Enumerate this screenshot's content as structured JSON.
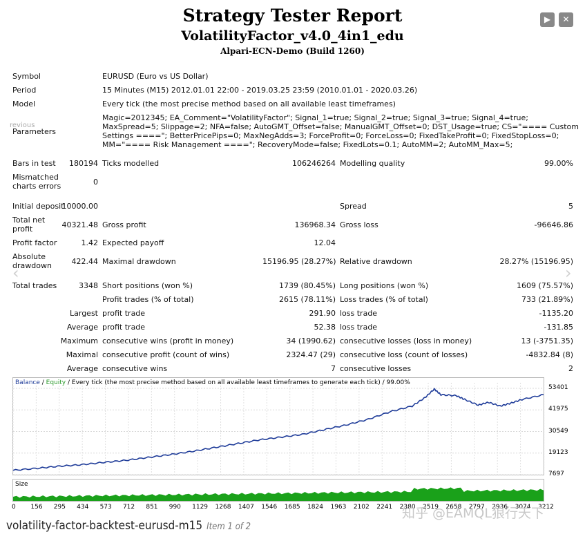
{
  "header": {
    "title": "Strategy Tester Report",
    "subtitle": "VolatilityFactor_v4.0_4in1_edu",
    "build": "Alpari-ECN-Demo (Build 1260)"
  },
  "controls": {
    "play_glyph": "▶",
    "close_glyph": "✕"
  },
  "overlay": {
    "ghost_text": "revious"
  },
  "info": {
    "symbol_label": "Symbol",
    "symbol_value": "EURUSD (Euro vs US Dollar)",
    "period_label": "Period",
    "period_value": "15 Minutes (M15) 2012.01.01 22:00 - 2019.03.25 23:59 (2010.01.01 - 2020.03.26)",
    "model_label": "Model",
    "model_value": "Every tick (the most precise method based on all available least timeframes)",
    "parameters_label": "Parameters",
    "parameters_value": "Magic=2012345; EA_Comment=\"VolatilityFactor\"; Signal_1=true; Signal_2=true; Signal_3=true; Signal_4=true; MaxSpread=5; Slippage=2; NFA=false; AutoGMT_Offset=false; ManualGMT_Offset=0; DST_Usage=true; CS=\"==== Custom Settings ====\"; BetterPricePips=0; MaxNegAdds=3; ForceProfit=0; ForceLoss=0; FixedTakeProfit=0; FixedStopLoss=0; MM=\"==== Risk Management ====\"; RecoveryMode=false; FixedLots=0.1; AutoMM=2; AutoMM_Max=5;"
  },
  "stats": {
    "bars_label": "Bars in test",
    "bars_value": "180194",
    "ticks_label": "Ticks modelled",
    "ticks_value": "106246264",
    "quality_label": "Modelling quality",
    "quality_value": "99.00%",
    "mismatch_label_1": "Mismatched",
    "mismatch_label_2": "charts errors",
    "mismatch_value": "0",
    "deposit_label": "Initial deposit",
    "deposit_value": "10000.00",
    "spread_label": "Spread",
    "spread_value": "5",
    "netprofit_label_1": "Total net",
    "netprofit_label_2": "profit",
    "netprofit_value": "40321.48",
    "grossprofit_label": "Gross profit",
    "grossprofit_value": "136968.34",
    "grossloss_label": "Gross loss",
    "grossloss_value": "-96646.86",
    "pf_label": "Profit factor",
    "pf_value": "1.42",
    "ep_label": "Expected payoff",
    "ep_value": "12.04",
    "absdd_label_1": "Absolute",
    "absdd_label_2": "drawdown",
    "absdd_value": "422.44",
    "maxdd_label": "Maximal drawdown",
    "maxdd_value": "15196.95 (28.27%)",
    "reldd_label": "Relative drawdown",
    "reldd_value": "28.27% (15196.95)",
    "trades_label": "Total trades",
    "trades_value": "3348",
    "short_label": "Short positions (won %)",
    "short_value": "1739 (80.45%)",
    "long_label": "Long positions (won %)",
    "long_value": "1609 (75.57%)",
    "pt_label": "Profit trades (% of total)",
    "pt_value": "2615 (78.11%)",
    "lt_label": "Loss trades (% of total)",
    "lt_value": "733 (21.89%)",
    "largest_label": "Largest",
    "largest_profit_label": "profit trade",
    "largest_profit_value": "291.90",
    "largest_loss_label": "loss trade",
    "largest_loss_value": "-1135.20",
    "average_label": "Average",
    "average_profit_label": "profit trade",
    "average_profit_value": "52.38",
    "average_loss_label": "loss trade",
    "average_loss_value": "-131.85",
    "maximum_label": "Maximum",
    "max_wins_label": "consecutive wins (profit in money)",
    "max_wins_value": "34 (1990.62)",
    "max_losses_label": "consecutive losses (loss in money)",
    "max_losses_value": "13 (-3751.35)",
    "maximal_label": "Maximal",
    "mx_profit_label": "consecutive profit (count of wins)",
    "mx_profit_value": "2324.47 (29)",
    "mx_loss_label": "consecutive loss (count of losses)",
    "mx_loss_value": "-4832.84 (8)",
    "avg_label": "Average",
    "avg_wins_label": "consecutive wins",
    "avg_wins_value": "7",
    "avg_losses_label": "consecutive losses",
    "avg_losses_value": "2"
  },
  "chart_legend": {
    "balance": "Balance",
    "sep1": " / ",
    "equity": "Equity",
    "rest": " / Every tick (the most precise method based on all available least timeframes to generate each tick) / 99.00%"
  },
  "chart_data": {
    "type": "line",
    "y_ticks": [
      "53401",
      "41975",
      "30549",
      "19123",
      "7697"
    ],
    "ylim": [
      7697,
      53401
    ],
    "x_ticks": [
      "0",
      "156",
      "295",
      "434",
      "573",
      "712",
      "851",
      "990",
      "1129",
      "1268",
      "1407",
      "1546",
      "1685",
      "1824",
      "1963",
      "2102",
      "2241",
      "2380",
      "2519",
      "2658",
      "2797",
      "2936",
      "3074",
      "3212"
    ],
    "series": [
      {
        "name": "Balance",
        "color": "#1f3c99",
        "x": [
          0,
          156,
          295,
          434,
          573,
          712,
          851,
          990,
          1129,
          1268,
          1407,
          1546,
          1685,
          1824,
          1963,
          2102,
          2241,
          2380,
          2519,
          2600,
          2658,
          2700,
          2797,
          2850,
          2936,
          3000,
          3074,
          3140,
          3212,
          3348
        ],
        "y": [
          10000,
          11100,
          12200,
          13000,
          14200,
          15300,
          16800,
          18300,
          20000,
          22000,
          24000,
          26000,
          27500,
          29000,
          31500,
          34000,
          37000,
          41000,
          44000,
          48500,
          53000,
          50000,
          49500,
          47500,
          44500,
          46000,
          44000,
          45500,
          47500,
          50000
        ]
      }
    ],
    "size_panel": {
      "label": "Size",
      "color": "#1aa11a"
    }
  },
  "caption": {
    "filename": "volatility-factor-backtest-eurusd-m15",
    "item": "Item 1 of 2"
  },
  "watermark": "知乎 @EAMQL狼行天下"
}
